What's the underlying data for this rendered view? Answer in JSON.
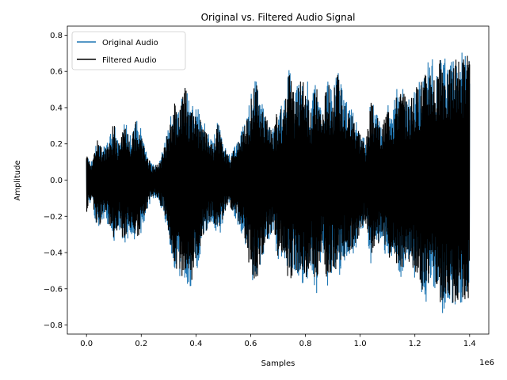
{
  "chart_data": {
    "type": "line",
    "title": "Original vs. Filtered Audio Signal",
    "xlabel": "Samples",
    "ylabel": "Amplitude",
    "x_offset_label": "1e6",
    "xlim": [
      -70000,
      1470000
    ],
    "ylim": [
      -0.85,
      0.85
    ],
    "x_ticks": [
      0,
      200000,
      400000,
      600000,
      800000,
      1000000,
      1200000,
      1400000
    ],
    "x_tick_labels": [
      "0.0",
      "0.2",
      "0.4",
      "0.6",
      "0.8",
      "1.0",
      "1.2",
      "1.4"
    ],
    "y_ticks": [
      -0.8,
      -0.6,
      -0.4,
      -0.2,
      0.0,
      0.2,
      0.4,
      0.6,
      0.8
    ],
    "y_tick_labels": [
      "−0.8",
      "−0.6",
      "−0.4",
      "−0.2",
      "0.0",
      "0.2",
      "0.4",
      "0.6",
      "0.8"
    ],
    "legend_position": "top-left",
    "grid": false,
    "colors": {
      "original": "#1f77b4",
      "filtered": "#000000"
    },
    "x": [
      0,
      20000,
      40000,
      60000,
      80000,
      100000,
      120000,
      140000,
      160000,
      180000,
      200000,
      220000,
      240000,
      260000,
      280000,
      300000,
      320000,
      340000,
      360000,
      380000,
      400000,
      420000,
      440000,
      460000,
      480000,
      500000,
      520000,
      540000,
      560000,
      580000,
      600000,
      620000,
      640000,
      660000,
      680000,
      700000,
      720000,
      740000,
      760000,
      780000,
      800000,
      820000,
      840000,
      860000,
      880000,
      900000,
      920000,
      940000,
      960000,
      980000,
      1000000,
      1020000,
      1040000,
      1060000,
      1080000,
      1100000,
      1120000,
      1140000,
      1160000,
      1180000,
      1200000,
      1220000,
      1240000,
      1260000,
      1280000,
      1300000,
      1320000,
      1340000,
      1360000,
      1380000,
      1400000
    ],
    "series": [
      {
        "name": "Original Audio",
        "max": [
          0.15,
          0.1,
          0.24,
          0.18,
          0.22,
          0.35,
          0.22,
          0.33,
          0.25,
          0.35,
          0.28,
          0.16,
          0.09,
          0.1,
          0.17,
          0.3,
          0.45,
          0.4,
          0.56,
          0.42,
          0.4,
          0.38,
          0.3,
          0.22,
          0.33,
          0.2,
          0.15,
          0.18,
          0.25,
          0.33,
          0.47,
          0.58,
          0.45,
          0.35,
          0.28,
          0.43,
          0.4,
          0.65,
          0.48,
          0.56,
          0.61,
          0.45,
          0.55,
          0.4,
          0.58,
          0.5,
          0.62,
          0.45,
          0.42,
          0.38,
          0.3,
          0.22,
          0.45,
          0.38,
          0.3,
          0.45,
          0.4,
          0.55,
          0.5,
          0.45,
          0.52,
          0.58,
          0.62,
          0.7,
          0.58,
          0.75,
          0.62,
          0.68,
          0.7,
          0.72,
          0.7
        ],
        "min": [
          -0.2,
          -0.12,
          -0.3,
          -0.22,
          -0.25,
          -0.35,
          -0.28,
          -0.38,
          -0.3,
          -0.35,
          -0.32,
          -0.18,
          -0.1,
          -0.12,
          -0.18,
          -0.32,
          -0.48,
          -0.55,
          -0.61,
          -0.6,
          -0.52,
          -0.38,
          -0.3,
          -0.22,
          -0.35,
          -0.22,
          -0.15,
          -0.2,
          -0.28,
          -0.35,
          -0.55,
          -0.6,
          -0.45,
          -0.38,
          -0.3,
          -0.45,
          -0.42,
          -0.62,
          -0.5,
          -0.56,
          -0.58,
          -0.48,
          -0.65,
          -0.42,
          -0.6,
          -0.5,
          -0.56,
          -0.45,
          -0.42,
          -0.4,
          -0.32,
          -0.25,
          -0.48,
          -0.4,
          -0.32,
          -0.48,
          -0.42,
          -0.55,
          -0.52,
          -0.48,
          -0.55,
          -0.6,
          -0.68,
          -0.62,
          -0.6,
          -0.77,
          -0.65,
          -0.7,
          -0.68,
          -0.7,
          -0.68
        ]
      },
      {
        "name": "Filtered Audio",
        "max": [
          0.14,
          0.09,
          0.22,
          0.17,
          0.2,
          0.33,
          0.2,
          0.31,
          0.23,
          0.33,
          0.26,
          0.15,
          0.08,
          0.09,
          0.16,
          0.28,
          0.43,
          0.38,
          0.54,
          0.4,
          0.38,
          0.36,
          0.28,
          0.2,
          0.31,
          0.18,
          0.14,
          0.17,
          0.23,
          0.31,
          0.45,
          0.56,
          0.43,
          0.33,
          0.26,
          0.41,
          0.38,
          0.63,
          0.46,
          0.54,
          0.59,
          0.43,
          0.53,
          0.38,
          0.56,
          0.48,
          0.6,
          0.43,
          0.4,
          0.36,
          0.28,
          0.2,
          0.43,
          0.36,
          0.28,
          0.43,
          0.38,
          0.53,
          0.48,
          0.43,
          0.5,
          0.56,
          0.6,
          0.68,
          0.56,
          0.73,
          0.6,
          0.66,
          0.68,
          0.7,
          0.68
        ],
        "min": [
          -0.19,
          -0.11,
          -0.28,
          -0.21,
          -0.23,
          -0.33,
          -0.26,
          -0.36,
          -0.28,
          -0.33,
          -0.3,
          -0.17,
          -0.09,
          -0.11,
          -0.17,
          -0.3,
          -0.46,
          -0.53,
          -0.59,
          -0.58,
          -0.5,
          -0.36,
          -0.28,
          -0.2,
          -0.33,
          -0.2,
          -0.14,
          -0.19,
          -0.26,
          -0.33,
          -0.53,
          -0.58,
          -0.43,
          -0.36,
          -0.28,
          -0.43,
          -0.4,
          -0.6,
          -0.48,
          -0.54,
          -0.56,
          -0.46,
          -0.63,
          -0.4,
          -0.58,
          -0.48,
          -0.54,
          -0.43,
          -0.4,
          -0.38,
          -0.3,
          -0.23,
          -0.46,
          -0.38,
          -0.3,
          -0.46,
          -0.4,
          -0.53,
          -0.5,
          -0.46,
          -0.53,
          -0.58,
          -0.66,
          -0.6,
          -0.58,
          -0.75,
          -0.63,
          -0.68,
          -0.66,
          -0.68,
          -0.66
        ]
      }
    ]
  }
}
